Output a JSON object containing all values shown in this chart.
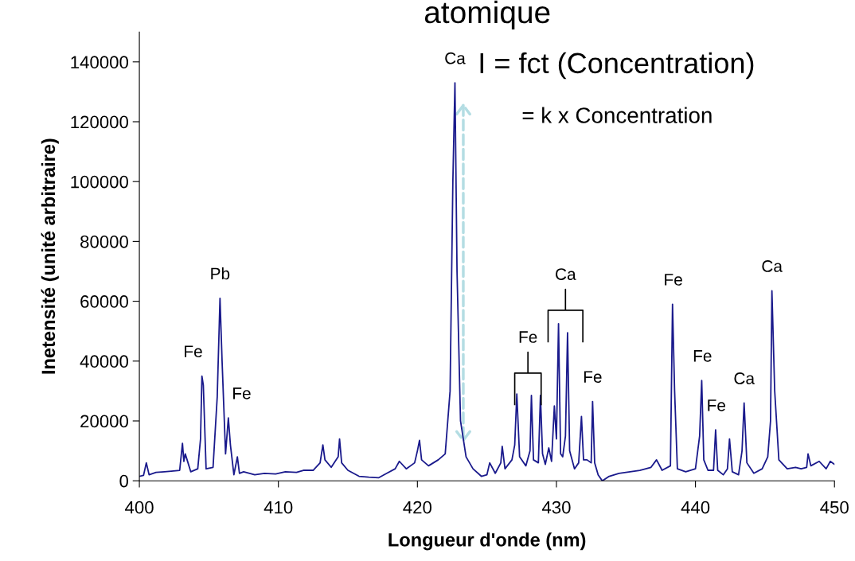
{
  "chart_data": {
    "type": "line",
    "title": "atomique",
    "xlabel": "Longueur d'onde (nm)",
    "ylabel": "Inetensité (unité arbitraire)",
    "xlim": [
      400,
      450
    ],
    "xticks": [
      400,
      410,
      420,
      430,
      440,
      450
    ],
    "ylim": [
      0,
      150000
    ],
    "yticks": [
      0,
      20000,
      40000,
      60000,
      80000,
      100000,
      120000,
      140000
    ],
    "grid": false,
    "legend": false,
    "marker": "none",
    "line_style": "solid",
    "series": [
      {
        "color": "#1a1a8c",
        "x": [
          400.0,
          400.3,
          400.5,
          400.7,
          401.2,
          401.8,
          402.3,
          402.9,
          403.1,
          403.2,
          403.3,
          403.5,
          403.7,
          404.2,
          404.4,
          404.5,
          404.6,
          404.8,
          405.3,
          405.6,
          405.8,
          405.95,
          406.2,
          406.4,
          406.55,
          406.8,
          407.05,
          407.2,
          407.5,
          408.3,
          409.0,
          409.8,
          410.5,
          411.3,
          411.8,
          412.5,
          413.0,
          413.2,
          413.35,
          413.8,
          414.3,
          414.4,
          414.55,
          415.0,
          415.8,
          416.5,
          417.2,
          417.8,
          418.4,
          418.7,
          419.2,
          419.8,
          420.0,
          420.15,
          420.3,
          420.8,
          421.5,
          422.0,
          422.35,
          422.55,
          422.7,
          422.85,
          423.1,
          423.5,
          424.0,
          424.6,
          425.0,
          425.2,
          425.6,
          426.0,
          426.1,
          426.3,
          426.8,
          427.0,
          427.15,
          427.35,
          427.8,
          428.1,
          428.2,
          428.35,
          428.7,
          428.85,
          429.0,
          429.2,
          429.45,
          429.65,
          429.85,
          430.0,
          430.15,
          430.3,
          430.45,
          430.65,
          430.8,
          430.95,
          431.3,
          431.6,
          431.8,
          431.95,
          432.2,
          432.5,
          432.6,
          432.75,
          433.0,
          433.3,
          433.8,
          434.5,
          435.3,
          436.0,
          436.8,
          437.2,
          437.6,
          438.2,
          438.35,
          438.5,
          438.7,
          439.3,
          440.0,
          440.3,
          440.45,
          440.6,
          440.9,
          441.3,
          441.45,
          441.6,
          442.0,
          442.3,
          442.45,
          442.65,
          443.1,
          443.35,
          443.5,
          443.7,
          444.2,
          444.8,
          445.2,
          445.4,
          445.5,
          445.7,
          446.0,
          446.6,
          447.2,
          447.6,
          448.0,
          448.1,
          448.3,
          448.9,
          449.4,
          449.7,
          450.0
        ],
        "values": [
          1500,
          1800,
          6000,
          2000,
          2800,
          3000,
          3200,
          3500,
          12500,
          6500,
          9000,
          6000,
          3000,
          4000,
          14000,
          35000,
          32000,
          4000,
          4500,
          28000,
          61000,
          40000,
          9000,
          21000,
          12000,
          2000,
          8000,
          2500,
          3000,
          2000,
          2500,
          2300,
          3000,
          2800,
          3500,
          3500,
          6000,
          12000,
          7000,
          4500,
          8000,
          14000,
          6000,
          3500,
          1500,
          1200,
          1000,
          2500,
          4000,
          6500,
          4000,
          6000,
          10000,
          13500,
          7000,
          5000,
          7000,
          9000,
          30000,
          100000,
          133000,
          70000,
          20000,
          8000,
          4000,
          1500,
          2000,
          6000,
          2500,
          6000,
          11500,
          4000,
          7000,
          12000,
          29000,
          8000,
          5000,
          10000,
          28500,
          7000,
          6000,
          28500,
          9000,
          5500,
          11000,
          6500,
          25000,
          14000,
          52500,
          9000,
          8000,
          15000,
          49500,
          10000,
          4000,
          6000,
          21500,
          7000,
          7000,
          6000,
          26500,
          6000,
          2000,
          0,
          1500,
          2500,
          3000,
          3500,
          4500,
          7000,
          3500,
          5000,
          59000,
          30000,
          4000,
          3000,
          4000,
          15000,
          33500,
          7000,
          3500,
          3500,
          17000,
          3500,
          2000,
          4000,
          14000,
          3000,
          2000,
          10000,
          26000,
          6000,
          2500,
          4000,
          8000,
          20000,
          63500,
          30000,
          7000,
          4000,
          4500,
          4000,
          4500,
          9000,
          5000,
          6500,
          4000,
          6500,
          5500
        ]
      }
    ],
    "annotations": [
      {
        "text": "Fe",
        "x": 404.5,
        "y": 35000
      },
      {
        "text": "Pb",
        "x": 405.8,
        "y": 61000
      },
      {
        "text": "Fe",
        "x": 406.4,
        "y": 21000
      },
      {
        "text": "Ca",
        "x": 422.7,
        "y": 133000
      },
      {
        "text": "Fe",
        "x": 432.6,
        "y": 26500
      },
      {
        "text": "Fe",
        "x": 438.4,
        "y": 59000
      },
      {
        "text": "Fe",
        "x": 440.5,
        "y": 33500
      },
      {
        "text": "Fe",
        "x": 441.5,
        "y": 17000
      },
      {
        "text": "Ca",
        "x": 443.5,
        "y": 26000
      },
      {
        "text": "Ca",
        "x": 445.5,
        "y": 63500
      },
      "Fe",
      "Ca",
      "I = fct (Concentration)",
      "= k x Concentration"
    ]
  }
}
